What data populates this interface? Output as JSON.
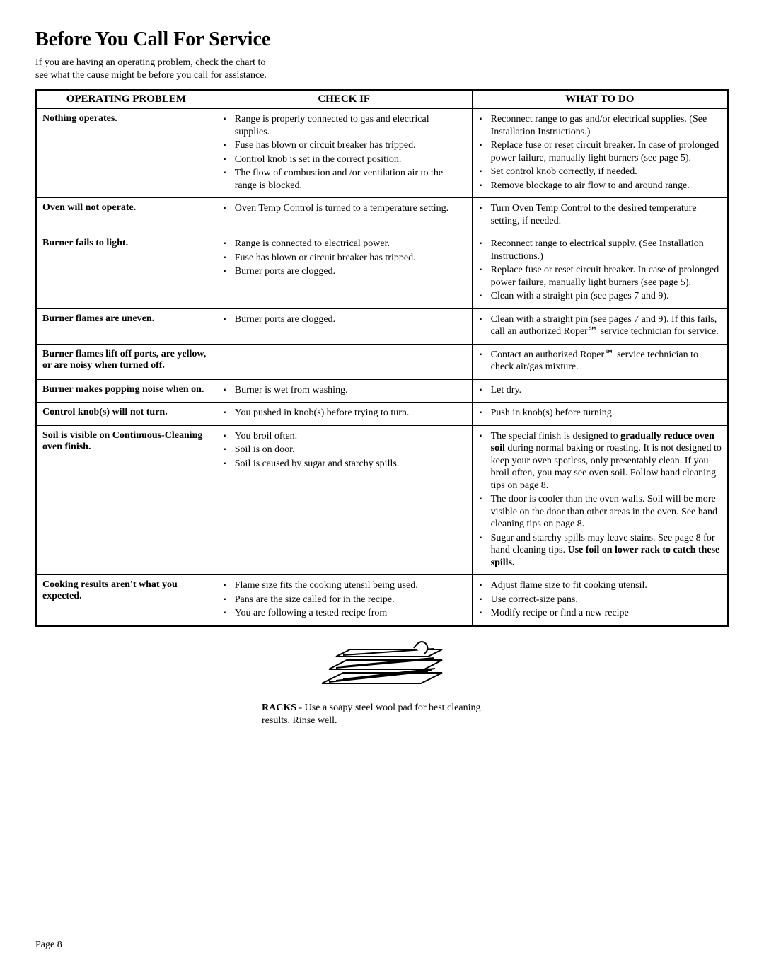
{
  "title": "Before You Call For Service",
  "intro": "If you are having an operating problem, check the chart to see what the cause might be before you call for assistance.",
  "headers": [
    "OPERATING PROBLEM",
    "CHECK IF",
    "WHAT TO DO"
  ],
  "rows": [
    {
      "problem": "Nothing operates.",
      "check": [
        "Range is properly connected to gas and electrical supplies.",
        "Fuse has blown or circuit breaker has tripped.",
        "Control knob is set in the correct position.",
        "The flow of combustion and /or ventilation air to the range is blocked."
      ],
      "action": [
        "Reconnect range to gas and/or electrical supplies. (See Installation Instructions.)",
        "Replace fuse or reset circuit breaker. In case of prolonged power failure, manually light burners (see page 5).",
        "Set control knob correctly, if needed.",
        "Remove blockage to air flow to and around range."
      ]
    },
    {
      "problem": "Oven will not operate.",
      "check": [
        "Oven Temp Control is turned to a temperature setting."
      ],
      "action": [
        "Turn Oven Temp Control to the desired temperature setting, if needed."
      ]
    },
    {
      "problem": "Burner fails to light.",
      "check": [
        "Range is connected to electrical power.",
        "Fuse has blown or circuit breaker has tripped.",
        "Burner ports are clogged."
      ],
      "action": [
        "Reconnect range to electrical supply. (See Installation Instructions.)",
        "Replace fuse or reset circuit breaker. In case of prolonged power failure, manually light burners (see page 5).",
        "Clean with a straight pin (see pages 7 and 9)."
      ]
    },
    {
      "problem": "Burner flames are uneven.",
      "check": [
        "Burner ports are clogged."
      ],
      "action": [
        "Clean with a straight pin (see pages 7 and 9). If this fails, call an authorized Roper℠ service technician for service."
      ]
    },
    {
      "problem": "Burner flames lift off ports, are yellow, or are noisy when turned off.",
      "check": [],
      "action": [
        "Contact an authorized Roper℠ service technician to check air/gas mixture."
      ]
    },
    {
      "problem": "Burner makes popping noise when on.",
      "check": [
        "Burner is wet from washing."
      ],
      "action": [
        "Let dry."
      ]
    },
    {
      "problem": "Control knob(s) will not turn.",
      "check": [
        "You pushed in knob(s) before trying to turn."
      ],
      "action": [
        "Push in knob(s) before turning."
      ]
    },
    {
      "problem": "Soil is visible on Continuous-Cleaning oven finish.",
      "check": [
        "You broil often.",
        "Soil is on door.",
        "Soil is caused by sugar and starchy spills."
      ],
      "action": [
        "The special finish is designed to <b>gradually reduce oven soil</b> during normal baking or roasting. It is not designed to keep your oven spotless, only presentably clean. If you broil often, you may see oven soil. Follow hand cleaning tips on page 8.",
        "The door is cooler than the oven walls. Soil will be more visible on the door than other areas in the oven. See hand cleaning tips on page 8.",
        "Sugar and starchy spills may leave stains. See page 8 for hand cleaning tips. <b>Use foil on lower rack to catch these spills.</b>"
      ]
    },
    {
      "problem": "Cooking results aren't what you expected.",
      "check": [
        "Flame size fits the cooking utensil being used.",
        "Pans are the size called for in the recipe.",
        "You are following a tested recipe from"
      ],
      "action": [
        "Adjust flame size to fit cooking utensil.",
        "Use correct-size pans.",
        "Modify recipe or find a new recipe"
      ]
    }
  ],
  "racks_caption": "<b>RACKS</b> - Use a soapy steel wool pad for best cleaning results. Rinse well.",
  "page": "Page 8"
}
